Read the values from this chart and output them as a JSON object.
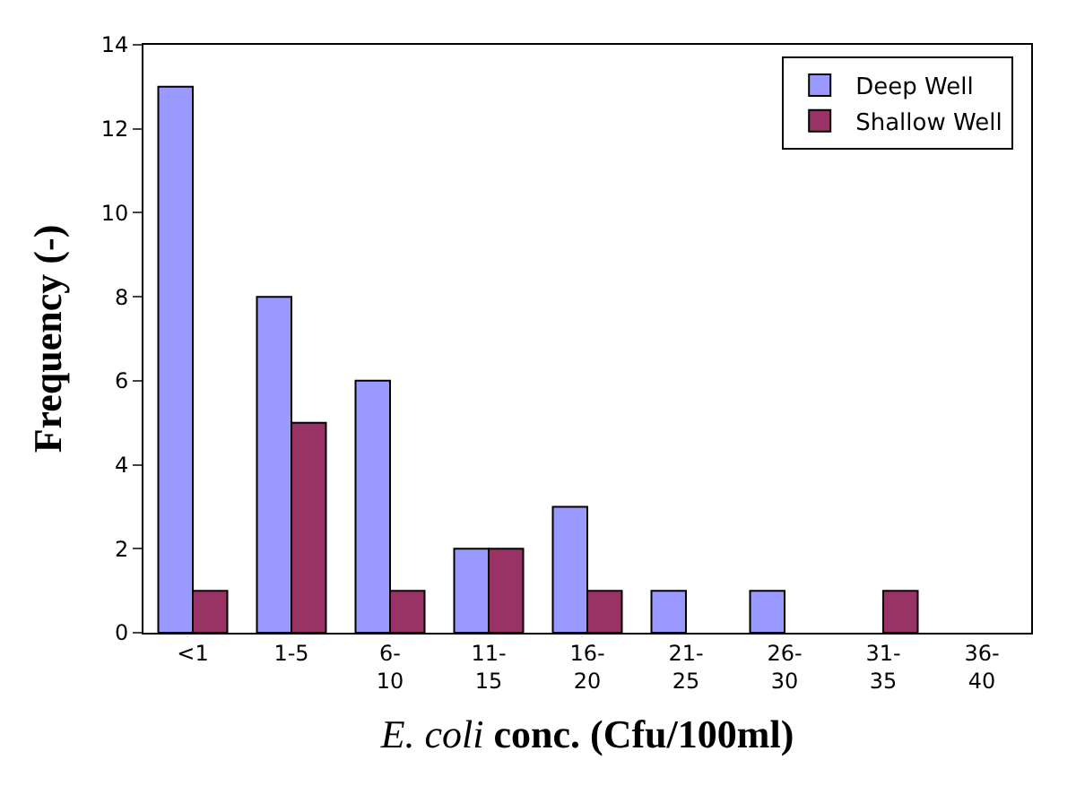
{
  "chart_data": {
    "type": "bar",
    "xlabel": "E. coli conc. (Cfu/100ml)",
    "ylabel": "Frequency (-)",
    "categories": [
      "<1",
      "1-5",
      "6-10",
      "11-15",
      "16-20",
      "21-25",
      "26-30",
      "31-35",
      "36-40"
    ],
    "series": [
      {
        "name": "Deep Well",
        "color": "#9999ff",
        "values": [
          13,
          8,
          6,
          2,
          3,
          1,
          1,
          0,
          0
        ]
      },
      {
        "name": "Shallow Well",
        "color": "#993366",
        "values": [
          1,
          5,
          1,
          2,
          1,
          0,
          0,
          1,
          0
        ]
      }
    ],
    "ylim": [
      0,
      14
    ],
    "yticks": [
      0,
      2,
      4,
      6,
      8,
      10,
      12,
      14
    ],
    "legend": "top right"
  }
}
